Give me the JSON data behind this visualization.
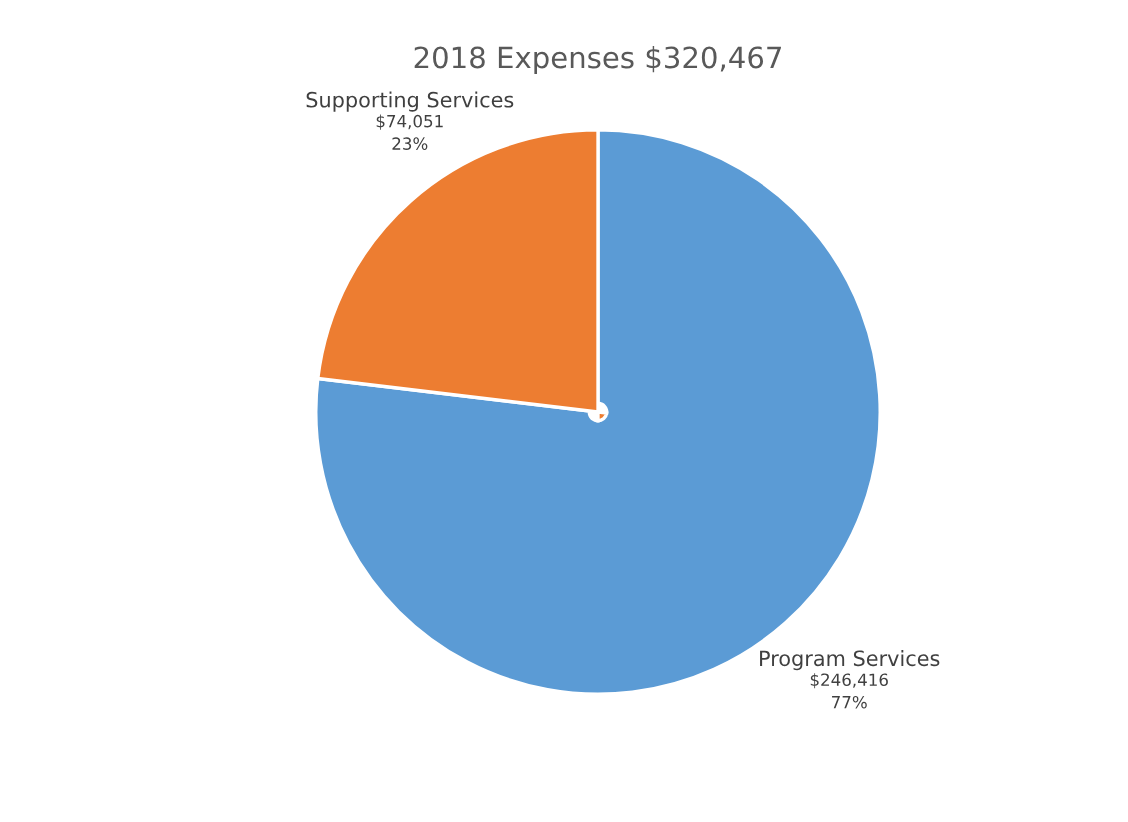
{
  "chart_data": {
    "type": "pie",
    "title": "2018 Expenses $320,467",
    "categories": [
      "Program Services",
      "Supporting Services"
    ],
    "values": [
      246416,
      74051
    ],
    "colors": [
      "#5b9bd5",
      "#ed7d31"
    ],
    "value_labels": [
      "$246,416\n77%",
      "$74,051\n23%"
    ],
    "legend": false
  }
}
